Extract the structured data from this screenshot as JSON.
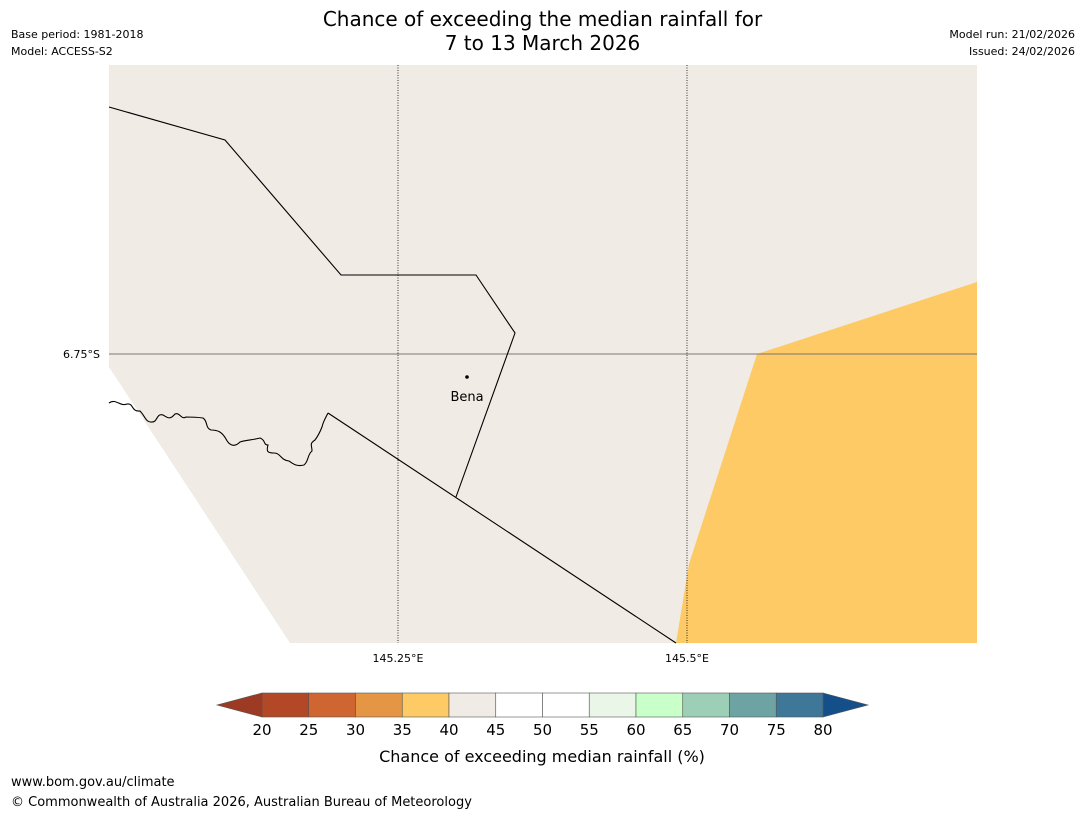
{
  "header": {
    "title_line1": "Chance of exceeding the median rainfall for",
    "title_line2": "7 to 13 March 2026",
    "base_period": "Base period: 1981-2018",
    "model": "Model: ACCESS-S2",
    "model_run": "Model run: 21/02/2026",
    "issued": "Issued: 24/02/2026"
  },
  "map": {
    "background_color": "#f0ebe5",
    "land_color": "#f0ebe5",
    "anomaly_color": "#fdca66",
    "lat_labels": [
      "6.75°S"
    ],
    "lon_labels": [
      "145.25°E",
      "145.5°E"
    ],
    "places": [
      {
        "name": "Bena"
      }
    ]
  },
  "colorbar": {
    "title": "Chance of exceeding median rainfall (%)",
    "ticks": [
      "20",
      "25",
      "30",
      "35",
      "40",
      "45",
      "50",
      "55",
      "60",
      "65",
      "70",
      "75",
      "80"
    ],
    "under_color": "#9c3a23",
    "over_color": "#154f89",
    "bins": [
      {
        "color": "#b34826"
      },
      {
        "color": "#cf6631"
      },
      {
        "color": "#e49645"
      },
      {
        "color": "#fdca66"
      },
      {
        "color": "#f0ebe5"
      },
      {
        "color": "#ffffff"
      },
      {
        "color": "#ffffff"
      },
      {
        "color": "#eaf6e7"
      },
      {
        "color": "#c9ffc9"
      },
      {
        "color": "#9dcfb6"
      },
      {
        "color": "#6ea3a4"
      },
      {
        "color": "#3e7797"
      }
    ]
  },
  "footer": {
    "url": "www.bom.gov.au/climate",
    "copyright": "© Commonwealth of Australia 2026, Australian Bureau of Meteorology"
  }
}
